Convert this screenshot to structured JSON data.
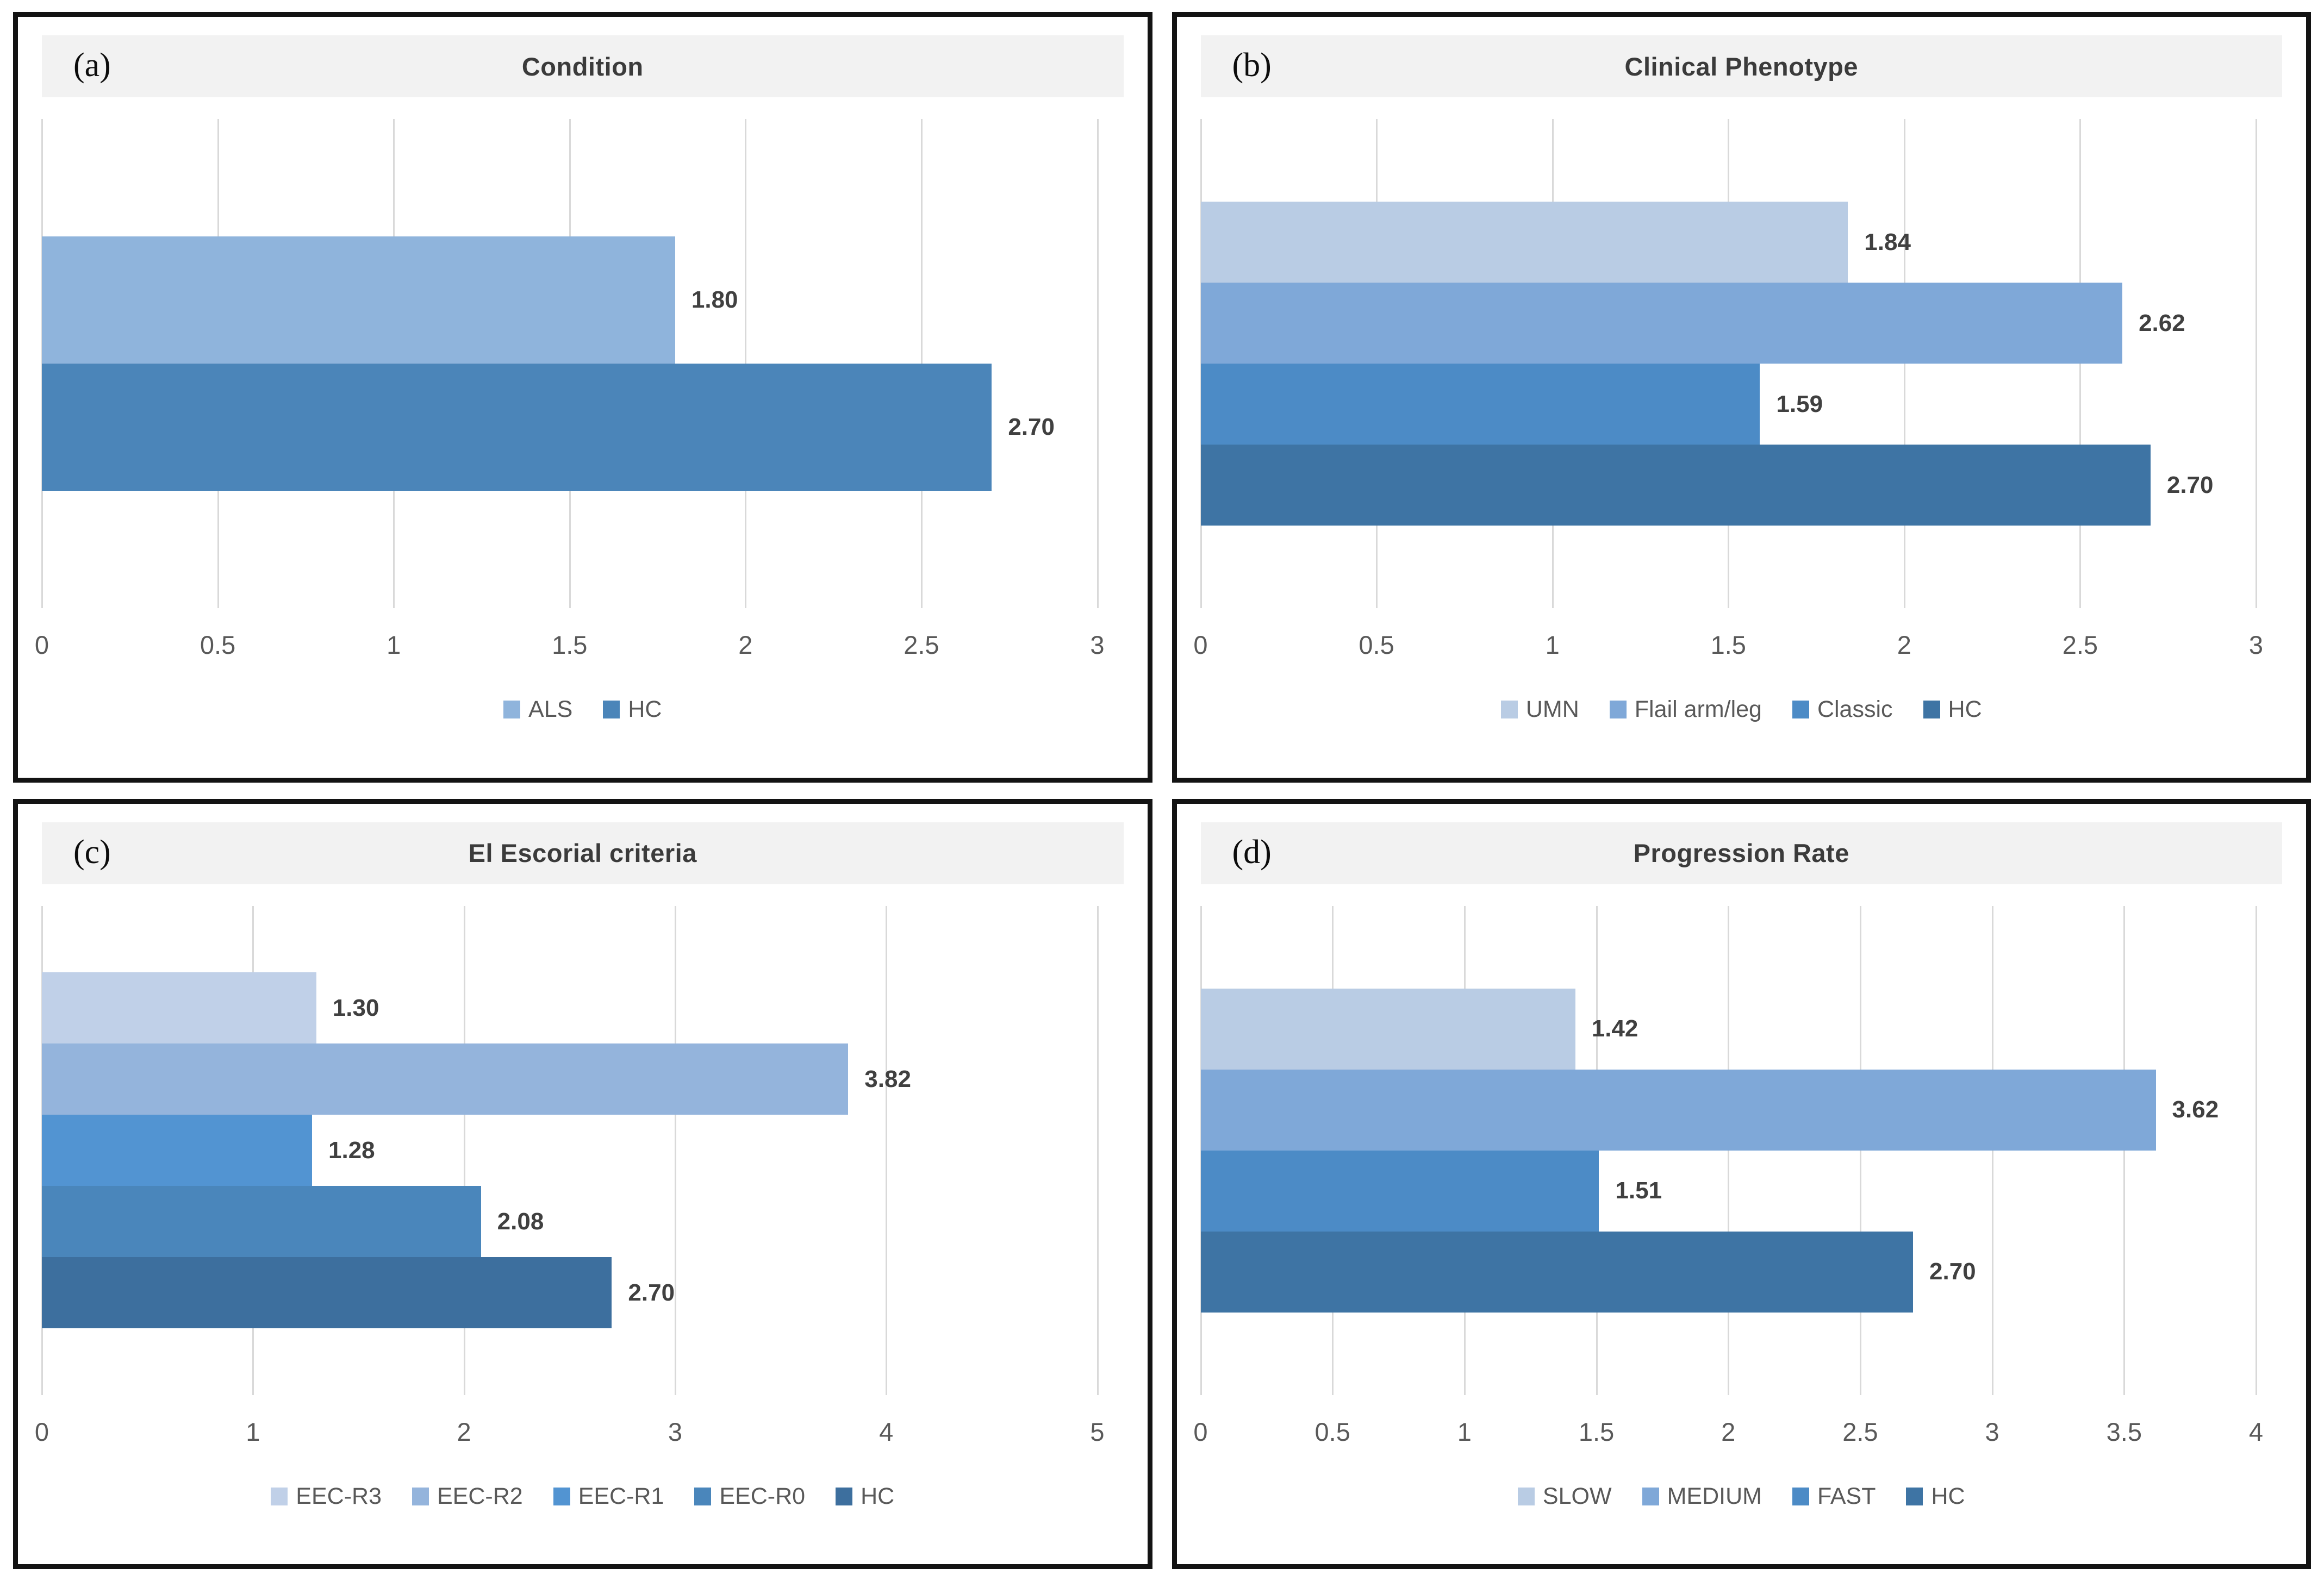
{
  "figure": {
    "background": "#ffffff",
    "panel_border_color": "#131313",
    "title_band_color": "#f2f2f2",
    "gridline_color": "#d9d9d9",
    "value_label_color": "#404040",
    "axis_label_color": "#595959",
    "title_color": "#3b3b3b"
  },
  "chart_data": [
    {
      "panel_label": "(a)",
      "type": "bar",
      "orientation": "horizontal",
      "title": "Condition",
      "series": [
        {
          "name": "ALS",
          "value": 1.8,
          "value_label": "1.80",
          "color": "#8fb4dc"
        },
        {
          "name": "HC",
          "value": 2.7,
          "value_label": "2.70",
          "color": "#4b85b9"
        }
      ],
      "xlim": [
        0,
        3
      ],
      "xticks": [
        0,
        0.5,
        1,
        1.5,
        2,
        2.5,
        3
      ],
      "xtick_labels": [
        "0",
        "0.5",
        "1",
        "1.5",
        "2",
        "2.5",
        "3"
      ],
      "grid": true,
      "legend_position": "bottom"
    },
    {
      "panel_label": "(b)",
      "type": "bar",
      "orientation": "horizontal",
      "title": "Clinical Phenotype",
      "series": [
        {
          "name": "UMN",
          "value": 1.84,
          "value_label": "1.84",
          "color": "#b9cce4"
        },
        {
          "name": "Flail arm/leg",
          "value": 2.62,
          "value_label": "2.62",
          "color": "#7fa8d8"
        },
        {
          "name": "Classic",
          "value": 1.59,
          "value_label": "1.59",
          "color": "#4c8bc6"
        },
        {
          "name": "HC",
          "value": 2.7,
          "value_label": "2.70",
          "color": "#3e74a4"
        }
      ],
      "xlim": [
        0,
        3
      ],
      "xticks": [
        0,
        0.5,
        1,
        1.5,
        2,
        2.5,
        3
      ],
      "xtick_labels": [
        "0",
        "0.5",
        "1",
        "1.5",
        "2",
        "2.5",
        "3"
      ],
      "grid": true,
      "legend_position": "bottom"
    },
    {
      "panel_label": "(c)",
      "type": "bar",
      "orientation": "horizontal",
      "title": "El Escorial criteria",
      "series": [
        {
          "name": "EEC-R3",
          "value": 1.3,
          "value_label": "1.30",
          "color": "#c0d0e8"
        },
        {
          "name": "EEC-R2",
          "value": 3.82,
          "value_label": "3.82",
          "color": "#94b4dc"
        },
        {
          "name": "EEC-R1",
          "value": 1.28,
          "value_label": "1.28",
          "color": "#5294d2"
        },
        {
          "name": "EEC-R0",
          "value": 2.08,
          "value_label": "2.08",
          "color": "#4a86bb"
        },
        {
          "name": "HC",
          "value": 2.7,
          "value_label": "2.70",
          "color": "#3d6f9e"
        }
      ],
      "xlim": [
        0,
        5
      ],
      "xticks": [
        0,
        1,
        2,
        3,
        4,
        5
      ],
      "xtick_labels": [
        "0",
        "1",
        "2",
        "3",
        "4",
        "5"
      ],
      "grid": true,
      "legend_position": "bottom"
    },
    {
      "panel_label": "(d)",
      "type": "bar",
      "orientation": "horizontal",
      "title": "Progression Rate",
      "series": [
        {
          "name": "SLOW",
          "value": 1.42,
          "value_label": "1.42",
          "color": "#b9cce4"
        },
        {
          "name": "MEDIUM",
          "value": 3.62,
          "value_label": "3.62",
          "color": "#7fa8d8"
        },
        {
          "name": "FAST",
          "value": 1.51,
          "value_label": "1.51",
          "color": "#4c8bc6"
        },
        {
          "name": "HC",
          "value": 2.7,
          "value_label": "2.70",
          "color": "#3e74a4"
        }
      ],
      "xlim": [
        0,
        4
      ],
      "xticks": [
        0,
        0.5,
        1,
        1.5,
        2,
        2.5,
        3,
        3.5,
        4
      ],
      "xtick_labels": [
        "0",
        "0.5",
        "1",
        "1.5",
        "2",
        "2.5",
        "3",
        "3.5",
        "4"
      ],
      "grid": true,
      "legend_position": "bottom"
    }
  ]
}
